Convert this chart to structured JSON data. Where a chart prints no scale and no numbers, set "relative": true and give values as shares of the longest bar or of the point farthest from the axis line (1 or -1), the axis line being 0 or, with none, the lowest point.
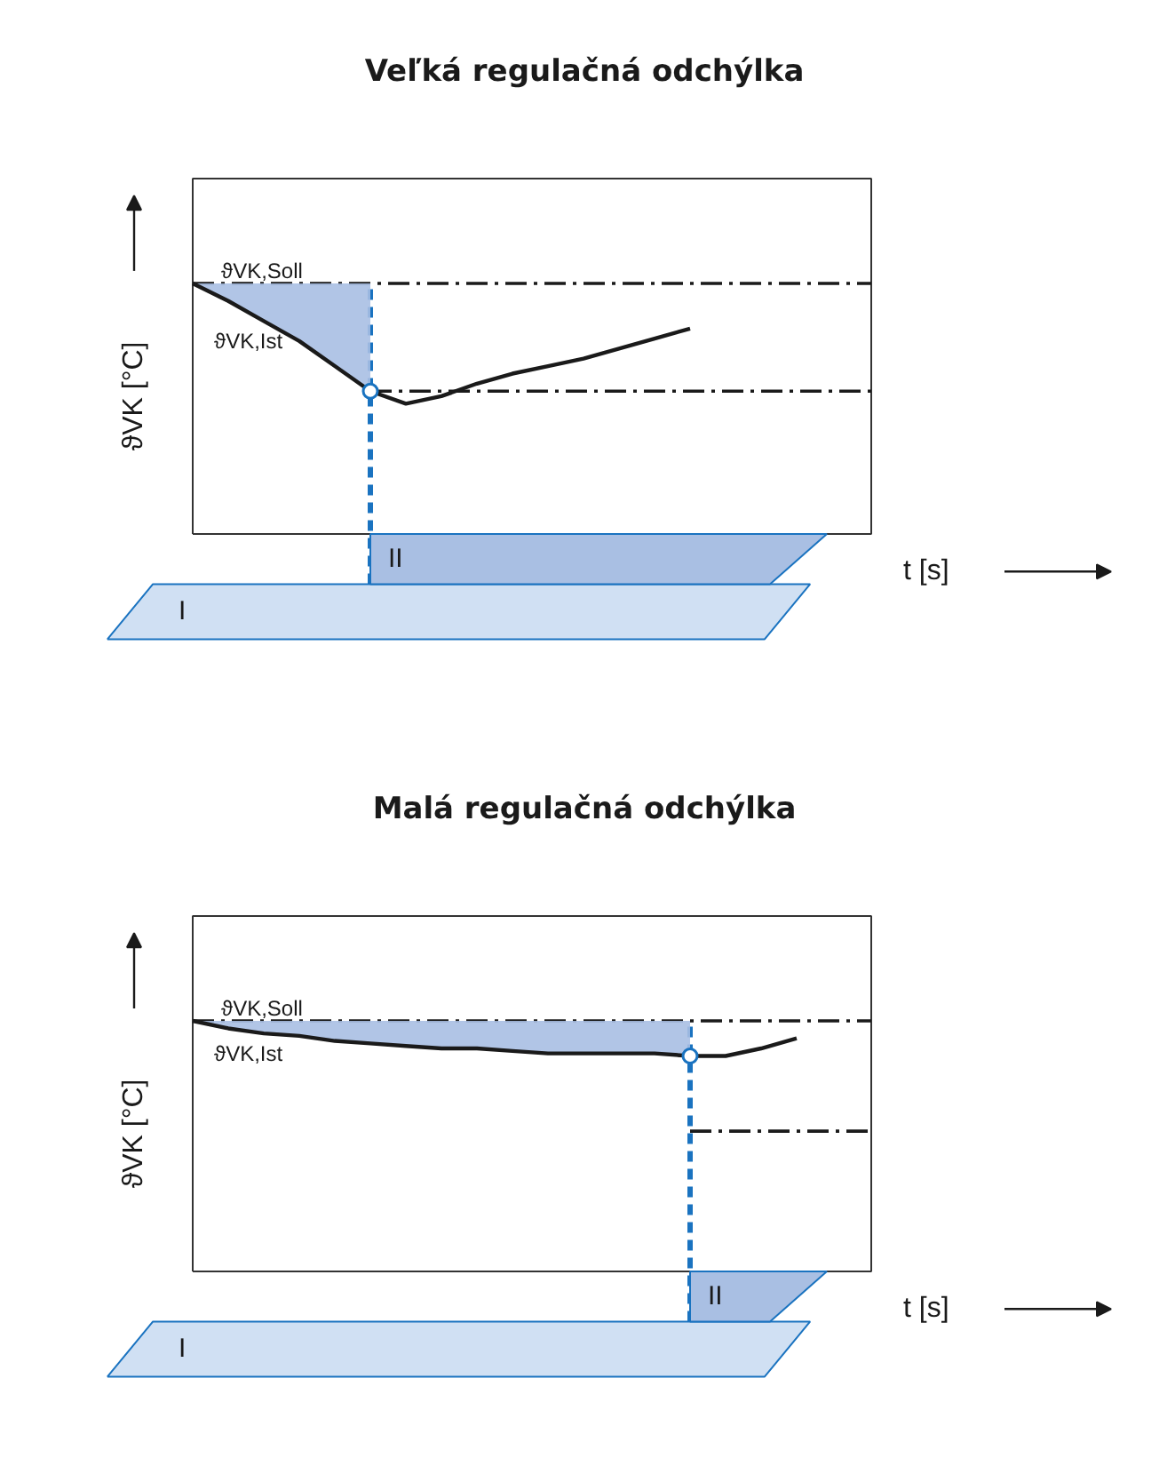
{
  "chart_data": [
    {
      "type": "line",
      "title": "Veľká regulačná odchýlka",
      "xlabel": "t [s]",
      "ylabel": "ϑVK [°C]",
      "relative": true,
      "grid": false,
      "legend": false,
      "marker": "none",
      "line_style": "solid",
      "categories": [
        null,
        null,
        null,
        null,
        null,
        null,
        null,
        null,
        null,
        null,
        null,
        null,
        null,
        null,
        null,
        null,
        null,
        null,
        null,
        null
      ],
      "series": [
        {
          "color": "#1a1a1a",
          "values": [
            1,
            0.93,
            0.85,
            0.77,
            0.67,
            0.57,
            0.52,
            0.55,
            0.6,
            0.64,
            0.67,
            0.7,
            0.74,
            0.78,
            0.82,
            null,
            null,
            null,
            null,
            null
          ],
          "lower": [
            1,
            0.93,
            0.85,
            0.77,
            0.67,
            0.57,
            null,
            null,
            null,
            null,
            null,
            null,
            null,
            null,
            null,
            null,
            null,
            null,
            null,
            null
          ],
          "upper": [
            1,
            1,
            1,
            1,
            1,
            1,
            null,
            null,
            null,
            null,
            null,
            null,
            null,
            null,
            null,
            null,
            null,
            null,
            null,
            null
          ]
        }
      ],
      "ref_lines": [
        {
          "axis": "y",
          "value": 1,
          "label": "ϑVK,Soll",
          "color": "#1a1a1a",
          "line_style": "dashdot"
        },
        {
          "axis": "y",
          "value": 0.57,
          "color": "#1a1a1a",
          "line_style": "dashdot"
        }
      ],
      "annotations": [
        "ϑVK,Ist",
        "I",
        "II"
      ]
    },
    {
      "type": "line",
      "title": "Malá regulačná odchýlka",
      "xlabel": "t [s]",
      "ylabel": "ϑVK [°C]",
      "relative": true,
      "grid": false,
      "legend": false,
      "marker": "none",
      "line_style": "solid",
      "categories": [
        null,
        null,
        null,
        null,
        null,
        null,
        null,
        null,
        null,
        null,
        null,
        null,
        null,
        null,
        null,
        null,
        null,
        null,
        null,
        null
      ],
      "series": [
        {
          "color": "#1a1a1a",
          "values": [
            1,
            0.97,
            0.95,
            0.94,
            0.92,
            0.91,
            0.9,
            0.89,
            0.89,
            0.88,
            0.87,
            0.87,
            0.87,
            0.87,
            0.86,
            0.86,
            0.89,
            0.93,
            null,
            null
          ],
          "lower": [
            1,
            0.97,
            0.95,
            0.94,
            0.92,
            0.91,
            0.9,
            0.89,
            0.89,
            0.88,
            0.87,
            0.87,
            0.87,
            0.87,
            0.86,
            null,
            null,
            null,
            null,
            null
          ],
          "upper": [
            1,
            1,
            1,
            1,
            1,
            1,
            1,
            1,
            1,
            1,
            1,
            1,
            1,
            1,
            1,
            null,
            null,
            null,
            null,
            null
          ]
        }
      ],
      "ref_lines": [
        {
          "axis": "y",
          "value": 1,
          "label": "ϑVK,Soll",
          "color": "#1a1a1a",
          "line_style": "dashdot"
        },
        {
          "axis": "y",
          "value": 0.56,
          "color": "#1a1a1a",
          "line_style": "dashdot"
        }
      ],
      "annotations": [
        "ϑVK,Ist",
        "I",
        "II"
      ]
    }
  ]
}
